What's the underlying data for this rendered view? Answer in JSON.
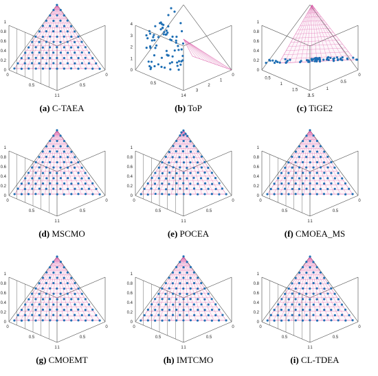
{
  "figure": {
    "panels": [
      {
        "label": "(a)",
        "name": "C-TAEA",
        "variant": "regular"
      },
      {
        "label": "(b)",
        "name": "ToP",
        "variant": "top"
      },
      {
        "label": "(c)",
        "name": "TiGE2",
        "variant": "tige2"
      },
      {
        "label": "(d)",
        "name": "MSCMO",
        "variant": "regular"
      },
      {
        "label": "(e)",
        "name": "POCEA",
        "variant": "regular"
      },
      {
        "label": "(f)",
        "name": "CMOEA_MS",
        "variant": "regular"
      },
      {
        "label": "(g)",
        "name": "CMOEMT",
        "variant": "regular"
      },
      {
        "label": "(h)",
        "name": "IMTCMO",
        "variant": "regular"
      },
      {
        "label": "(i)",
        "name": "CL-TDEA",
        "variant": "regular"
      }
    ],
    "ticks": {
      "z": [
        "0",
        "0.2",
        "0.4",
        "0.6",
        "0.8",
        "1"
      ],
      "left_axis": [
        "0",
        "0.5",
        "1"
      ],
      "right_axis": [
        "1",
        "0.5",
        "0"
      ],
      "top_z": [
        "0",
        "1",
        "2",
        "3",
        "4"
      ],
      "top_left_axis": [
        "0.5",
        "1"
      ],
      "top_right_axis": [
        "4",
        "3",
        "2",
        "1",
        "0"
      ],
      "tige2_z": [
        "0",
        "0.2",
        "0.4",
        "0.6",
        "0.8",
        "1"
      ],
      "tige2_left_axis": [
        "0.5",
        "1",
        "1.5",
        "2"
      ],
      "tige2_right_axis": [
        "1.5",
        "1",
        "0.5",
        "0"
      ]
    },
    "colors": {
      "points": "#1f6fb4",
      "surface": "#d84ca0",
      "box": "#444444"
    }
  },
  "chart_data": [
    {
      "type": "scatter",
      "panel": "(a)",
      "title": "C-TAEA",
      "dims": 3,
      "pareto_front": "simplex",
      "zlim": [
        0,
        1
      ]
    },
    {
      "type": "scatter",
      "panel": "(b)",
      "title": "ToP",
      "dims": 3,
      "pareto_front": "simplex",
      "zlim": [
        0,
        4
      ]
    },
    {
      "type": "scatter",
      "panel": "(c)",
      "title": "TiGE2",
      "dims": 3,
      "pareto_front": "simplex",
      "zlim": [
        0,
        1
      ]
    },
    {
      "type": "scatter",
      "panel": "(d)",
      "title": "MSCMO",
      "dims": 3,
      "pareto_front": "simplex",
      "zlim": [
        0,
        1
      ]
    },
    {
      "type": "scatter",
      "panel": "(e)",
      "title": "POCEA",
      "dims": 3,
      "pareto_front": "simplex",
      "zlim": [
        0,
        1
      ]
    },
    {
      "type": "scatter",
      "panel": "(f)",
      "title": "CMOEA_MS",
      "dims": 3,
      "pareto_front": "simplex",
      "zlim": [
        0,
        1
      ]
    },
    {
      "type": "scatter",
      "panel": "(g)",
      "title": "CMOEMT",
      "dims": 3,
      "pareto_front": "simplex",
      "zlim": [
        0,
        1
      ]
    },
    {
      "type": "scatter",
      "panel": "(h)",
      "title": "IMTCMO",
      "dims": 3,
      "pareto_front": "simplex",
      "zlim": [
        0,
        1
      ]
    },
    {
      "type": "scatter",
      "panel": "(i)",
      "title": "CL-TDEA",
      "dims": 3,
      "pareto_front": "simplex",
      "zlim": [
        0,
        1
      ]
    }
  ]
}
